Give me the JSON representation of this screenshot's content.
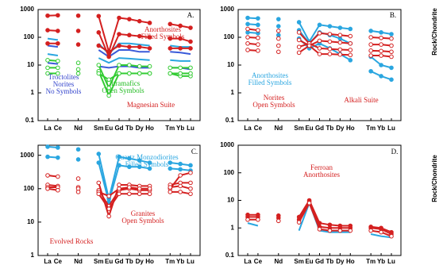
{
  "chart_data": [
    {
      "type": "line",
      "log_y": true,
      "categories": [
        "La",
        "Ce",
        null,
        "Nd",
        null,
        "Sm",
        "Eu",
        "Gd",
        "Tb",
        "Dy",
        "Ho",
        null,
        "Tm",
        "Yb",
        "Lu"
      ],
      "ylim": [
        0.1,
        1000
      ],
      "yticks": [
        0.1,
        1,
        10,
        100,
        1000
      ],
      "annotations": [
        {
          "lines": [
            "A."
          ],
          "color": "#000000"
        },
        {
          "lines": [
            "Anorthosites",
            "Filled Symbols"
          ],
          "color": "#d42020"
        },
        {
          "lines": [
            "Troctolites",
            "Norites",
            "No Symbols"
          ],
          "color": "#3344cc"
        },
        {
          "lines": [
            "Ultramafics",
            "Open Symbols"
          ],
          "color": "#22bb22"
        },
        {
          "lines": [
            "Magnesian Suite"
          ],
          "color": "#d42020"
        }
      ],
      "series": [
        {
          "color": "#2aa6e0",
          "values": [
            90,
            80,
            null,
            70,
            null,
            60,
            25,
            60,
            60,
            55,
            50,
            null,
            50,
            45,
            45
          ]
        },
        {
          "color": "#3a5bd9",
          "values": [
            50,
            45,
            null,
            40,
            null,
            35,
            20,
            35,
            35,
            30,
            30,
            null,
            30,
            28,
            25
          ]
        },
        {
          "color": "#2aa6e0",
          "values": [
            25,
            22,
            null,
            20,
            null,
            18,
            12,
            18,
            17,
            16,
            15,
            null,
            15,
            14,
            14
          ]
        },
        {
          "color": "#3a5bd9",
          "values": [
            12,
            11,
            null,
            10,
            null,
            9,
            8,
            9,
            9,
            8,
            8,
            null,
            8,
            8,
            7
          ]
        },
        {
          "color": "#33cc33",
          "marker": "open",
          "values": [
            15,
            14,
            null,
            12,
            null,
            10,
            1.5,
            10,
            10,
            9,
            9,
            null,
            8,
            8,
            8
          ]
        },
        {
          "color": "#33cc33",
          "marker": "open",
          "values": [
            8,
            8,
            null,
            7,
            null,
            6,
            0.8,
            5,
            5,
            5,
            5,
            null,
            5,
            4,
            4
          ]
        },
        {
          "color": "#33cc33",
          "marker": "open",
          "values": [
            5,
            5,
            null,
            5,
            null,
            5,
            3,
            5,
            5,
            5,
            5,
            null,
            5,
            5,
            5
          ]
        },
        {
          "color": "#d42020",
          "marker": "filled",
          "values": [
            600,
            620,
            null,
            600,
            null,
            580,
            30,
            500,
            450,
            380,
            330,
            null,
            300,
            260,
            220
          ]
        },
        {
          "color": "#d42020",
          "marker": "filled",
          "values": [
            180,
            170,
            null,
            170,
            null,
            150,
            20,
            130,
            120,
            110,
            100,
            null,
            90,
            90,
            70
          ]
        },
        {
          "color": "#d42020",
          "marker": "filled",
          "values": [
            60,
            60,
            null,
            55,
            null,
            50,
            30,
            50,
            45,
            45,
            40,
            null,
            40,
            40,
            40
          ]
        }
      ]
    },
    {
      "type": "line",
      "log_y": true,
      "y_label": "Rock/Chondrite",
      "categories": [
        "La",
        "Ce",
        null,
        "Nd",
        null,
        "Sm",
        "Eu",
        "Gd",
        "Tb",
        "Dy",
        "Ho",
        null,
        "Tm",
        "Yb",
        "Lu"
      ],
      "ylim": [
        0.1,
        1000
      ],
      "yticks": [
        0.1,
        1,
        10,
        100,
        1000
      ],
      "annotations": [
        {
          "lines": [
            "B."
          ],
          "color": "#000000"
        },
        {
          "lines": [
            "Anorthosites",
            "Filled Symbols"
          ],
          "color": "#2aa6e0"
        },
        {
          "lines": [
            "Norites",
            "Open Symbols"
          ],
          "color": "#d42020"
        },
        {
          "lines": [
            "Alkali Suite"
          ],
          "color": "#d42020"
        }
      ],
      "series": [
        {
          "color": "#2aa6e0",
          "marker": "filled",
          "values": [
            500,
            480,
            null,
            450,
            null,
            350,
            70,
            280,
            250,
            220,
            200,
            null,
            170,
            150,
            130
          ]
        },
        {
          "color": "#2aa6e0",
          "marker": "filled",
          "values": [
            300,
            280,
            null,
            250,
            null,
            180,
            60,
            150,
            120,
            90,
            60,
            null,
            20,
            10,
            8
          ]
        },
        {
          "color": "#2aa6e0",
          "marker": "filled",
          "values": [
            150,
            140,
            null,
            120,
            null,
            90,
            40,
            60,
            40,
            25,
            15,
            null,
            6,
            4,
            3
          ]
        },
        {
          "color": "#d42020",
          "marker": "open",
          "values": [
            200,
            180,
            null,
            170,
            null,
            150,
            60,
            140,
            130,
            120,
            110,
            null,
            100,
            95,
            90
          ]
        },
        {
          "color": "#d42020",
          "marker": "open",
          "values": [
            100,
            95,
            null,
            90,
            null,
            80,
            50,
            75,
            70,
            65,
            60,
            null,
            55,
            55,
            50
          ]
        },
        {
          "color": "#d42020",
          "marker": "open",
          "values": [
            60,
            55,
            null,
            50,
            null,
            45,
            60,
            40,
            38,
            36,
            35,
            null,
            33,
            32,
            30
          ]
        },
        {
          "color": "#d42020",
          "marker": "open",
          "values": [
            35,
            33,
            null,
            30,
            null,
            28,
            50,
            25,
            25,
            24,
            23,
            null,
            22,
            22,
            20
          ]
        }
      ]
    },
    {
      "type": "line",
      "log_y": true,
      "categories": [
        "La",
        "Ce",
        null,
        "Nd",
        null,
        "Sm",
        "Eu",
        "Gd",
        "Tb",
        "Dy",
        "Ho",
        null,
        "Tm",
        "Yb",
        "Lu"
      ],
      "ylim": [
        1,
        2000
      ],
      "yticks": [
        1,
        10,
        100,
        1000
      ],
      "annotations": [
        {
          "lines": [
            "C."
          ],
          "color": "#000000"
        },
        {
          "lines": [
            "Quartz  Monzodiorites",
            "Filled Symbols"
          ],
          "color": "#2aa6e0"
        },
        {
          "lines": [
            "Granites",
            "Open Symbols"
          ],
          "color": "#d42020"
        },
        {
          "lines": [
            "Evolved Rocks"
          ],
          "color": "#d42020"
        }
      ],
      "series": [
        {
          "color": "#2aa6e0",
          "marker": "filled",
          "values": [
            1800,
            1700,
            null,
            1500,
            null,
            1100,
            50,
            900,
            800,
            700,
            600,
            null,
            600,
            550,
            500
          ]
        },
        {
          "color": "#2aa6e0",
          "marker": "filled",
          "values": [
            900,
            850,
            null,
            750,
            null,
            600,
            40,
            500,
            450,
            450,
            400,
            null,
            400,
            380,
            350
          ]
        },
        {
          "color": "#d42020",
          "marker": "open",
          "values": [
            250,
            230,
            null,
            200,
            null,
            150,
            15,
            130,
            130,
            120,
            120,
            null,
            130,
            150,
            150
          ]
        },
        {
          "color": "#d42020",
          "marker": "open",
          "values": [
            130,
            120,
            null,
            110,
            null,
            90,
            30,
            90,
            100,
            90,
            90,
            null,
            100,
            250,
            300
          ]
        },
        {
          "color": "#d42020",
          "marker": "open",
          "values": [
            110,
            110,
            null,
            100,
            null,
            80,
            60,
            100,
            110,
            100,
            100,
            null,
            110,
            120,
            100
          ]
        },
        {
          "color": "#d42020",
          "marker": "open",
          "values": [
            100,
            90,
            null,
            80,
            null,
            70,
            25,
            70,
            70,
            70,
            70,
            null,
            80,
            80,
            70
          ]
        }
      ]
    },
    {
      "type": "line",
      "log_y": true,
      "y_label": "Rock/Chondrite",
      "categories": [
        "La",
        "Ce",
        null,
        "Nd",
        null,
        "Sm",
        "Eu",
        "Gd",
        "Tb",
        "Dy",
        "Ho",
        null,
        "Tm",
        "Yb",
        "Lu"
      ],
      "ylim": [
        0.1,
        1000
      ],
      "yticks": [
        0.1,
        1,
        10,
        100,
        1000
      ],
      "annotations": [
        {
          "lines": [
            "D."
          ],
          "color": "#000000"
        },
        {
          "lines": [
            "Ferroan",
            "Anorthosites"
          ],
          "color": "#d42020"
        }
      ],
      "series": [
        {
          "color": "#2aa6e0",
          "values": [
            1.5,
            1.2,
            null,
            1.1,
            null,
            0.8,
            8,
            0.8,
            0.7,
            0.7,
            0.7,
            null,
            0.6,
            0.5,
            0.45
          ]
        },
        {
          "color": "#d42020",
          "marker": "filled",
          "values": [
            3,
            3,
            null,
            2.8,
            null,
            2.5,
            10,
            1.5,
            1.3,
            1.2,
            1.2,
            null,
            1.1,
            1,
            0.7
          ]
        },
        {
          "color": "#d42020",
          "marker": "filled",
          "values": [
            2.5,
            2.5,
            null,
            2.3,
            null,
            2,
            9,
            1.1,
            1,
            1,
            1,
            null,
            1,
            0.9,
            0.6
          ]
        },
        {
          "color": "#d42020",
          "marker": "open",
          "values": [
            2,
            2,
            null,
            1.8,
            null,
            1.6,
            8,
            0.9,
            0.8,
            0.8,
            0.8,
            null,
            0.8,
            0.7,
            0.5
          ]
        }
      ]
    }
  ]
}
